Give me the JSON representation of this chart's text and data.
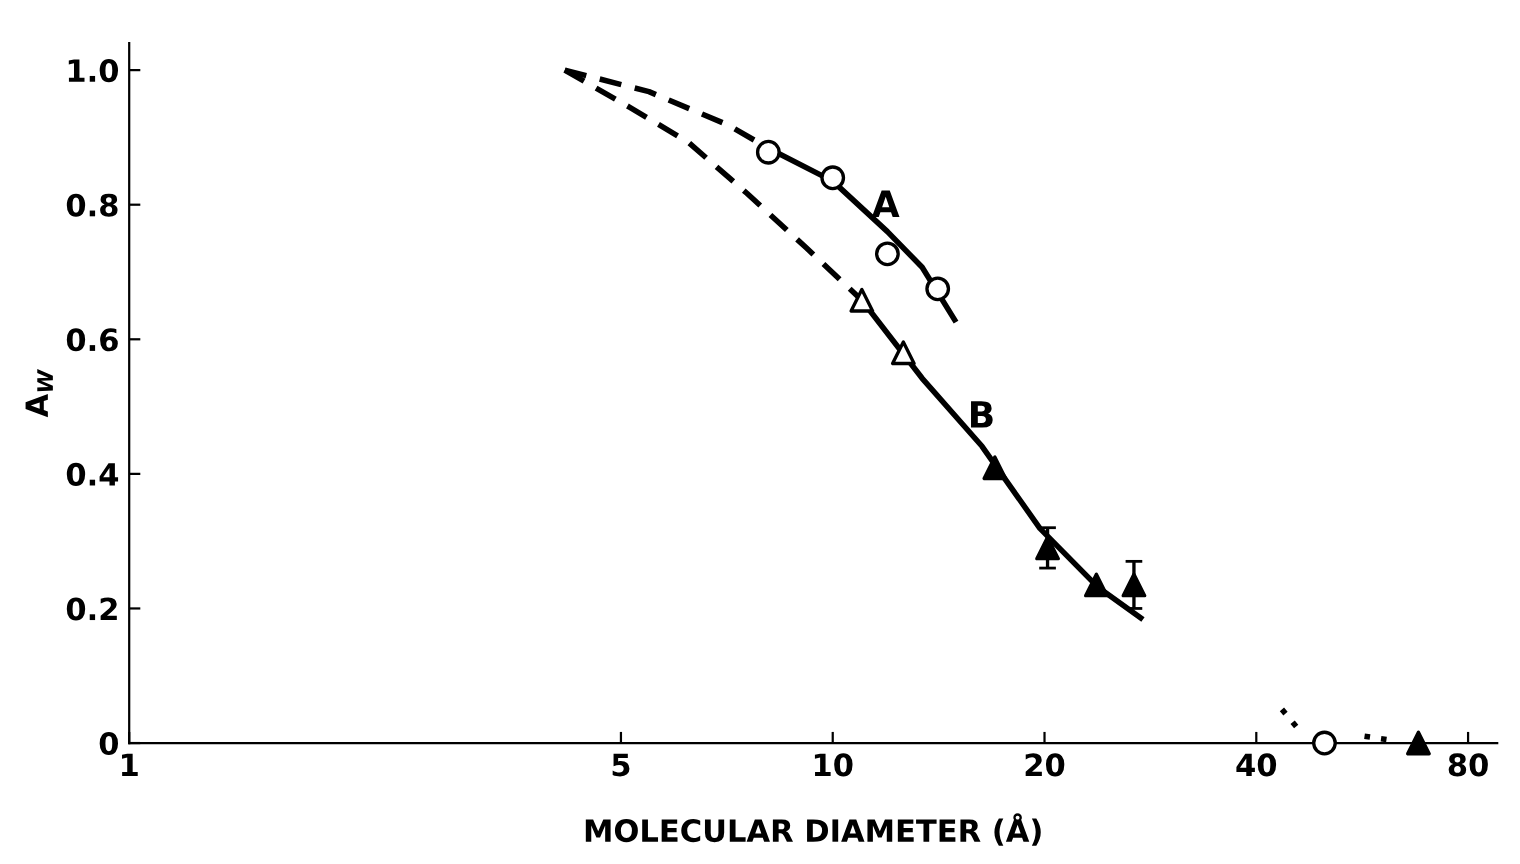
{
  "chart_data": {
    "type": "scatter",
    "xlabel": "MOLECULAR DIAMETER (Å)",
    "ylabel": "A$_{W}$",
    "log": "x",
    "xlim": [
      1,
      88
    ],
    "xticks": [
      1,
      5,
      10,
      20,
      40,
      80
    ],
    "ylim": [
      0,
      1.04
    ],
    "yticks": [
      {
        "value": 0,
        "label": "0"
      },
      0.2,
      0.4,
      0.6,
      0.8,
      {
        "value": 1.0,
        "label": "1.0"
      }
    ],
    "grid": false,
    "series": [
      {
        "type": "line",
        "line_style": "dashed",
        "marker": "none",
        "color": "#000000",
        "x": [
          4.16,
          5.48,
          7.08,
          8.1
        ],
        "values": [
          1.0,
          0.968,
          0.919,
          0.884
        ]
      },
      {
        "type": "line",
        "line_style": "solid",
        "marker": "none",
        "color": "#000000",
        "x": [
          8.1,
          10,
          11.96,
          13.4,
          14.9
        ],
        "values": [
          0.884,
          0.835,
          0.76,
          0.707,
          0.629
        ]
      },
      {
        "type": "line",
        "line_style": "dashed",
        "marker": "none",
        "color": "#000000",
        "x": [
          4.16,
          5.14,
          6.23,
          7.55,
          9.17,
          11.0
        ],
        "values": [
          1.0,
          0.945,
          0.893,
          0.817,
          0.736,
          0.658
        ]
      },
      {
        "type": "line",
        "line_style": "solid",
        "marker": "none",
        "color": "#000000",
        "x": [
          11.0,
          13.4,
          16.3,
          19.7,
          23.8,
          27.4
        ],
        "values": [
          0.658,
          0.542,
          0.441,
          0.319,
          0.232,
          0.186
        ]
      },
      {
        "type": "line",
        "line_style": "dotted",
        "marker": "none",
        "color": "#000000",
        "x": [
          43.5,
          46.4
        ],
        "values": [
          0.05,
          0.015
        ]
      },
      {
        "type": "line",
        "line_style": "dotted",
        "marker": "none",
        "color": "#000000",
        "x": [
          57,
          61.6
        ],
        "values": [
          0.01,
          0.005
        ]
      },
      {
        "marker": "circle",
        "color": "#000000",
        "x": [
          8.1,
          10,
          11.96,
          14.1,
          50
        ],
        "values": [
          0.878,
          0.84,
          0.727,
          0.675,
          0
        ]
      },
      {
        "marker": "triangle",
        "color": "#000000",
        "x": [
          11.0,
          12.6
        ],
        "values": [
          0.658,
          0.58
        ]
      },
      {
        "marker": "triangle",
        "color": "#000000",
        "x": [
          17.0,
          20.2,
          23.7,
          26.8,
          68
        ],
        "values": [
          0.409,
          0.29,
          0.235,
          0.235,
          0
        ],
        "errors": [
          null,
          0.03,
          null,
          0.035,
          null
        ]
      }
    ],
    "annotations": [
      "A",
      "B"
    ]
  }
}
